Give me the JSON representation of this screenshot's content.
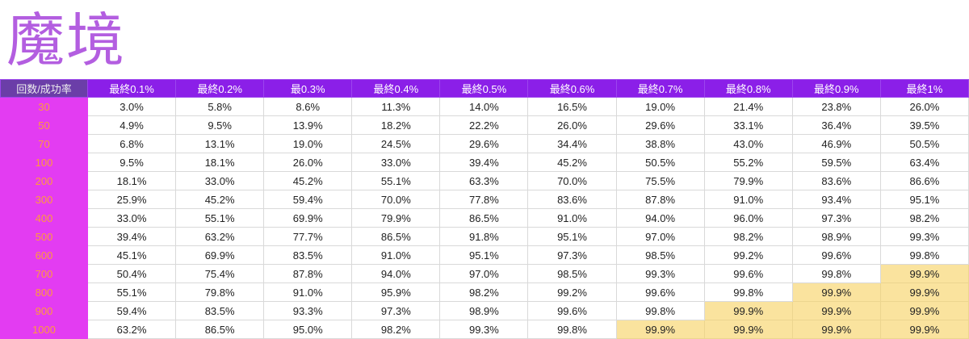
{
  "title": "魔境",
  "colors": {
    "title": "#b35ee0",
    "header": "#8b1fe8",
    "corner": "#6b3ea8",
    "row_header": "#e33cf2",
    "row_header_text": "#ff9a3c",
    "highlight": "#fae39e"
  },
  "highlight_value": "99.9%",
  "table": {
    "corner": "回数/成功率",
    "columns": [
      "最終0.1%",
      "最終0.2%",
      "最0.3%",
      "最終0.4%",
      "最終0.5%",
      "最終0.6%",
      "最終0.7%",
      "最終0.8%",
      "最終0.9%",
      "最終1%"
    ],
    "rows": [
      {
        "label": "30",
        "values": [
          "3.0%",
          "5.8%",
          "8.6%",
          "11.3%",
          "14.0%",
          "16.5%",
          "19.0%",
          "21.4%",
          "23.8%",
          "26.0%"
        ]
      },
      {
        "label": "50",
        "values": [
          "4.9%",
          "9.5%",
          "13.9%",
          "18.2%",
          "22.2%",
          "26.0%",
          "29.6%",
          "33.1%",
          "36.4%",
          "39.5%"
        ]
      },
      {
        "label": "70",
        "values": [
          "6.8%",
          "13.1%",
          "19.0%",
          "24.5%",
          "29.6%",
          "34.4%",
          "38.8%",
          "43.0%",
          "46.9%",
          "50.5%"
        ]
      },
      {
        "label": "100",
        "values": [
          "9.5%",
          "18.1%",
          "26.0%",
          "33.0%",
          "39.4%",
          "45.2%",
          "50.5%",
          "55.2%",
          "59.5%",
          "63.4%"
        ]
      },
      {
        "label": "200",
        "values": [
          "18.1%",
          "33.0%",
          "45.2%",
          "55.1%",
          "63.3%",
          "70.0%",
          "75.5%",
          "79.9%",
          "83.6%",
          "86.6%"
        ]
      },
      {
        "label": "300",
        "values": [
          "25.9%",
          "45.2%",
          "59.4%",
          "70.0%",
          "77.8%",
          "83.6%",
          "87.8%",
          "91.0%",
          "93.4%",
          "95.1%"
        ]
      },
      {
        "label": "400",
        "values": [
          "33.0%",
          "55.1%",
          "69.9%",
          "79.9%",
          "86.5%",
          "91.0%",
          "94.0%",
          "96.0%",
          "97.3%",
          "98.2%"
        ]
      },
      {
        "label": "500",
        "values": [
          "39.4%",
          "63.2%",
          "77.7%",
          "86.5%",
          "91.8%",
          "95.1%",
          "97.0%",
          "98.2%",
          "98.9%",
          "99.3%"
        ]
      },
      {
        "label": "600",
        "values": [
          "45.1%",
          "69.9%",
          "83.5%",
          "91.0%",
          "95.1%",
          "97.3%",
          "98.5%",
          "99.2%",
          "99.6%",
          "99.8%"
        ]
      },
      {
        "label": "700",
        "values": [
          "50.4%",
          "75.4%",
          "87.8%",
          "94.0%",
          "97.0%",
          "98.5%",
          "99.3%",
          "99.6%",
          "99.8%",
          "99.9%"
        ]
      },
      {
        "label": "800",
        "values": [
          "55.1%",
          "79.8%",
          "91.0%",
          "95.9%",
          "98.2%",
          "99.2%",
          "99.6%",
          "99.8%",
          "99.9%",
          "99.9%"
        ]
      },
      {
        "label": "900",
        "values": [
          "59.4%",
          "83.5%",
          "93.3%",
          "97.3%",
          "98.9%",
          "99.6%",
          "99.8%",
          "99.9%",
          "99.9%",
          "99.9%"
        ]
      },
      {
        "label": "1000",
        "values": [
          "63.2%",
          "86.5%",
          "95.0%",
          "98.2%",
          "99.3%",
          "99.8%",
          "99.9%",
          "99.9%",
          "99.9%",
          "99.9%"
        ]
      }
    ]
  }
}
